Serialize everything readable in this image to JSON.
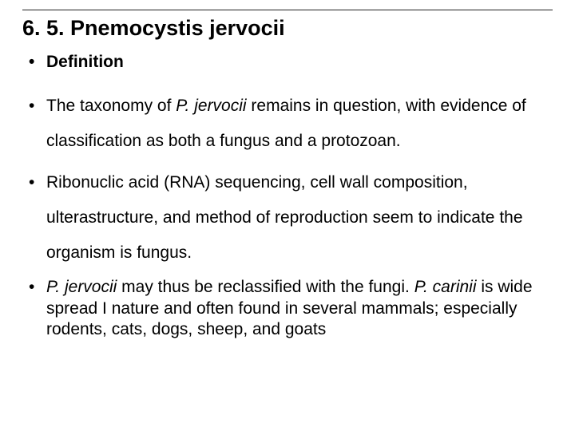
{
  "title": "6. 5. Pnemocystis jervocii",
  "bullets": {
    "b0": "Definition",
    "b1_a": "The taxonomy of ",
    "b1_i": "P. jervocii",
    "b1_b": " remains in question, with evidence of classification as both a fungus and a protozoan.",
    "b2": "Ribonuclic acid (RNA) sequencing, cell wall composition, ulterastructure, and method of reproduction seem to indicate the organism is fungus.",
    "b3_i1": "P. jervocii",
    "b3_a": " may thus be reclassified with the fungi. ",
    "b3_i2": "P. carinii",
    "b3_b": " is wide spread I nature and often found in several mammals; especially rodents, cats, dogs, sheep, and goats"
  },
  "colors": {
    "background": "#ffffff",
    "text": "#000000",
    "divider": "#222222"
  },
  "typography": {
    "font_family": "Arial",
    "title_size_pt": 27,
    "body_size_pt": 21,
    "title_weight": "bold"
  }
}
